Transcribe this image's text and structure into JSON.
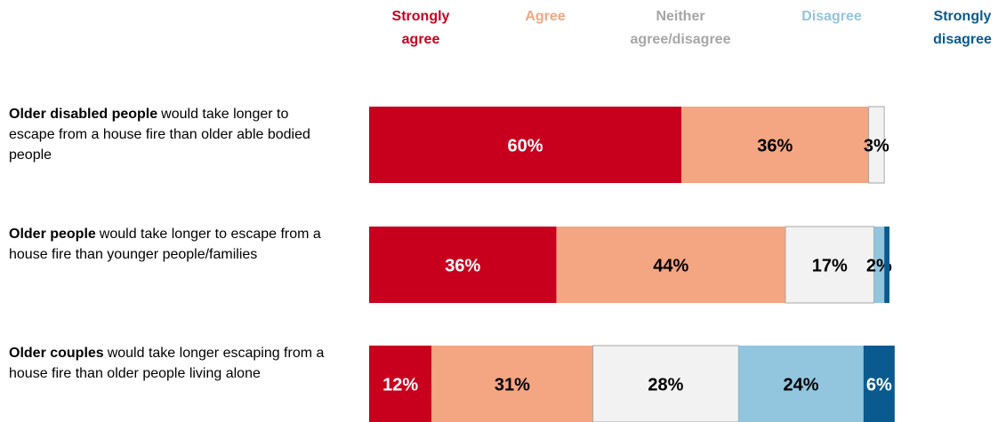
{
  "chart_data": {
    "type": "stacked-bar-horizontal",
    "categories": [
      {
        "bold": "Older disabled people",
        "text": "would take longer to escape from a house fire than older able bodied people"
      },
      {
        "bold": "Older people",
        "text": "would take longer to escape from a house fire than younger people/families"
      },
      {
        "bold": "Older couples",
        "text": "would take longer escaping from a house fire than older people living alone"
      }
    ],
    "xlim": [
      0,
      100
    ],
    "series": [
      {
        "name": "Strongly agree",
        "color": "#c8001e",
        "legend_color": "#c8001e",
        "label_color": "#ffffff",
        "values": [
          60,
          36,
          12
        ],
        "value_labels": [
          "60%",
          "36%",
          "12%"
        ]
      },
      {
        "name": "Agree",
        "color": "#f4a582",
        "legend_color": "#f4a582",
        "label_color": "#000000",
        "values": [
          36,
          44,
          31
        ],
        "value_labels": [
          "36%",
          "44%",
          "31%"
        ]
      },
      {
        "name": "Neither agree/disagree",
        "color": "#f2f2f2",
        "border": "#a6a6a6",
        "legend_color": "#a6a6a6",
        "label_color": "#000000",
        "values": [
          3,
          17,
          28
        ],
        "value_labels": [
          "3%",
          "17%",
          "28%"
        ]
      },
      {
        "name": "Disagree",
        "color": "#92c5de",
        "legend_color": "#92c5de",
        "label_color": "#000000",
        "values": [
          null,
          2,
          24
        ],
        "value_labels": [
          null,
          "2%",
          "24%"
        ]
      },
      {
        "name": "Strongly disagree",
        "color": "#0a5a8f",
        "legend_color": "#0a5a8f",
        "label_color": "#ffffff",
        "values": [
          null,
          1,
          6
        ],
        "value_labels": [
          null,
          "1%",
          "6%"
        ]
      }
    ]
  }
}
